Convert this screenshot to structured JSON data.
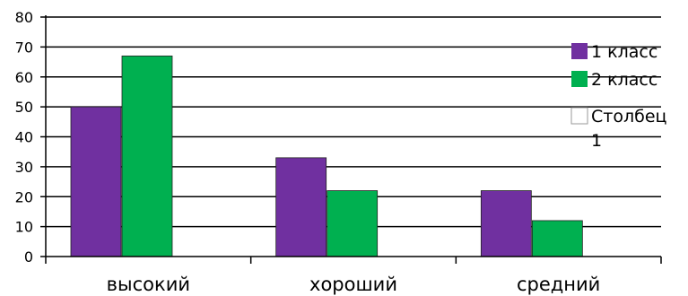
{
  "chart_data": {
    "type": "bar",
    "categories": [
      "высокий",
      "хороший",
      "средний"
    ],
    "series": [
      {
        "name": "1 класс",
        "values": [
          50,
          33,
          22
        ],
        "color": "#7030a0"
      },
      {
        "name": "2 класс",
        "values": [
          67,
          22,
          12
        ],
        "color": "#00b050"
      },
      {
        "name": "Столбец 1",
        "values": [
          null,
          null,
          null
        ],
        "color": "#ffffff"
      }
    ],
    "ylim": [
      0,
      80
    ],
    "yticks": [
      0,
      10,
      20,
      30,
      40,
      50,
      60,
      70,
      80
    ],
    "grid": true,
    "legend": "right",
    "legend_lines": [
      [
        "1 класс"
      ],
      [
        "2 класс"
      ],
      [
        "Столбец",
        "1"
      ]
    ]
  }
}
